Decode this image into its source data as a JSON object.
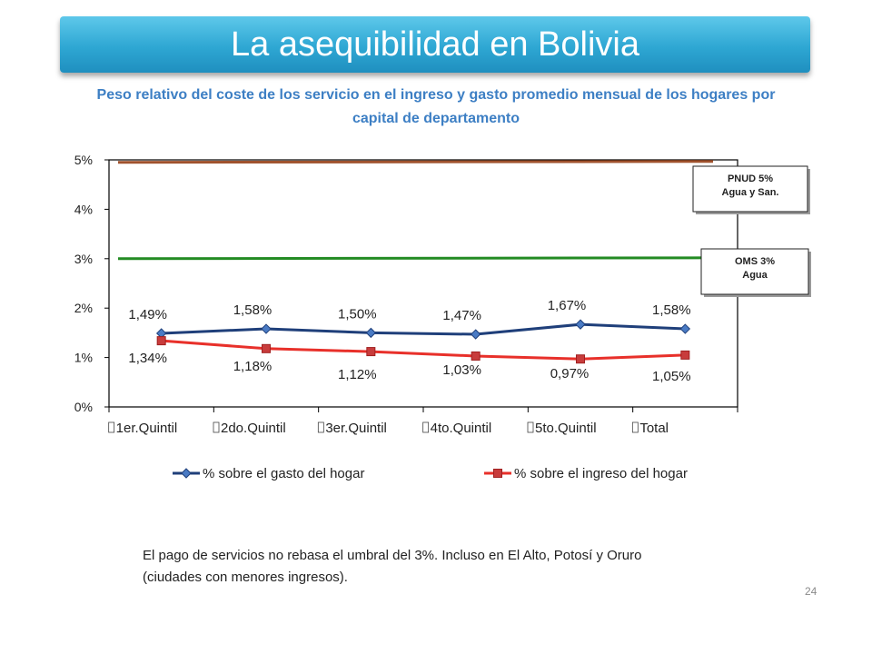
{
  "slide": {
    "title": "La asequibilidad en Bolivia",
    "subtitle": "Peso relativo del coste de los servicio en el ingreso y gasto promedio mensual de los hogares por capital de departamento",
    "note": "El pago de servicios no rebasa el umbral del 3%. Incluso en El Alto, Potosí y Oruro (ciudades con menores ingresos).",
    "page_number": "24",
    "title_bar_color": "#2ea7d3"
  },
  "chart_data": {
    "type": "line",
    "categories": [
      "1er.Quintil",
      "2do.Quintil",
      "3er.Quintil",
      "4to.Quintil",
      "5to.Quintil",
      "Total"
    ],
    "ylim": [
      0,
      5
    ],
    "yticks": [
      "0%",
      "1%",
      "2%",
      "3%",
      "4%",
      "5%"
    ],
    "series": [
      {
        "name": "% sobre el gasto del hogar",
        "values": [
          1.49,
          1.58,
          1.5,
          1.47,
          1.67,
          1.58
        ],
        "labels": [
          "1,49%",
          "1,58%",
          "1,50%",
          "1,47%",
          "1,67%",
          "1,58%"
        ],
        "color": "#1f3f7a",
        "marker_color": "#4a7bc4",
        "marker": "diamond"
      },
      {
        "name": "% sobre el ingreso del hogar",
        "values": [
          1.34,
          1.18,
          1.12,
          1.03,
          0.97,
          1.05
        ],
        "labels": [
          "1,34%",
          "1,18%",
          "1,12%",
          "1,03%",
          "0,97%",
          "1,05%"
        ],
        "color": "#e8302a",
        "marker_color": "#c83c3c",
        "marker": "square"
      }
    ],
    "reference_lines": [
      {
        "value": 4.95,
        "label_line1": "PNUD 5%",
        "label_line2": "Agua y San.",
        "color": "#a0522d"
      },
      {
        "value": 3.0,
        "label_line1": "OMS 3%",
        "label_line2": "Agua",
        "color": "#238b23"
      }
    ],
    "legend_position": "bottom",
    "grid": false
  }
}
